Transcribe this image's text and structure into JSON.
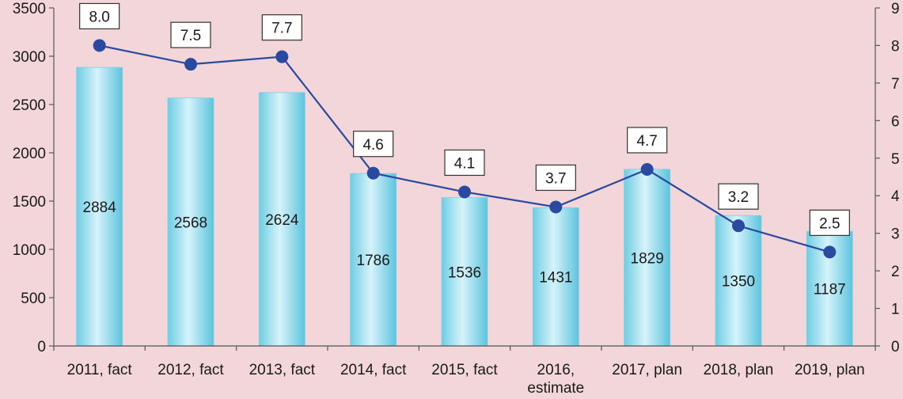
{
  "chart_data": {
    "type": "bar",
    "categories": [
      [
        "2011, fact"
      ],
      [
        "2012, fact"
      ],
      [
        "2013, fact"
      ],
      [
        "2014, fact"
      ],
      [
        "2015, fact"
      ],
      [
        "2016,",
        "estimate"
      ],
      [
        "2017, plan"
      ],
      [
        "2018, plan"
      ],
      [
        "2019, plan"
      ]
    ],
    "series": [
      {
        "type": "bar",
        "axis": "left",
        "values": [
          2884,
          2568,
          2624,
          1786,
          1536,
          1431,
          1829,
          1350,
          1187
        ],
        "color": "#8fd8ea"
      },
      {
        "type": "line",
        "axis": "right",
        "values": [
          8.0,
          7.5,
          7.7,
          4.6,
          4.1,
          3.7,
          4.7,
          3.2,
          2.5
        ],
        "labels": [
          "8.0",
          "7.5",
          "7.7",
          "4.6",
          "4.1",
          "3.7",
          "4.7",
          "3.2",
          "2.5"
        ],
        "color": "#2a4aa0"
      }
    ],
    "y_left": {
      "lim": [
        0,
        3500
      ],
      "ticks": [
        0,
        500,
        1000,
        1500,
        2000,
        2500,
        3000,
        3500
      ]
    },
    "y_right": {
      "lim": [
        0,
        9
      ],
      "ticks": [
        0,
        1,
        2,
        3,
        4,
        5,
        6,
        7,
        8,
        9
      ]
    },
    "title": "",
    "xlabel": "",
    "ylabel": "",
    "grid": false,
    "legend": "none"
  }
}
